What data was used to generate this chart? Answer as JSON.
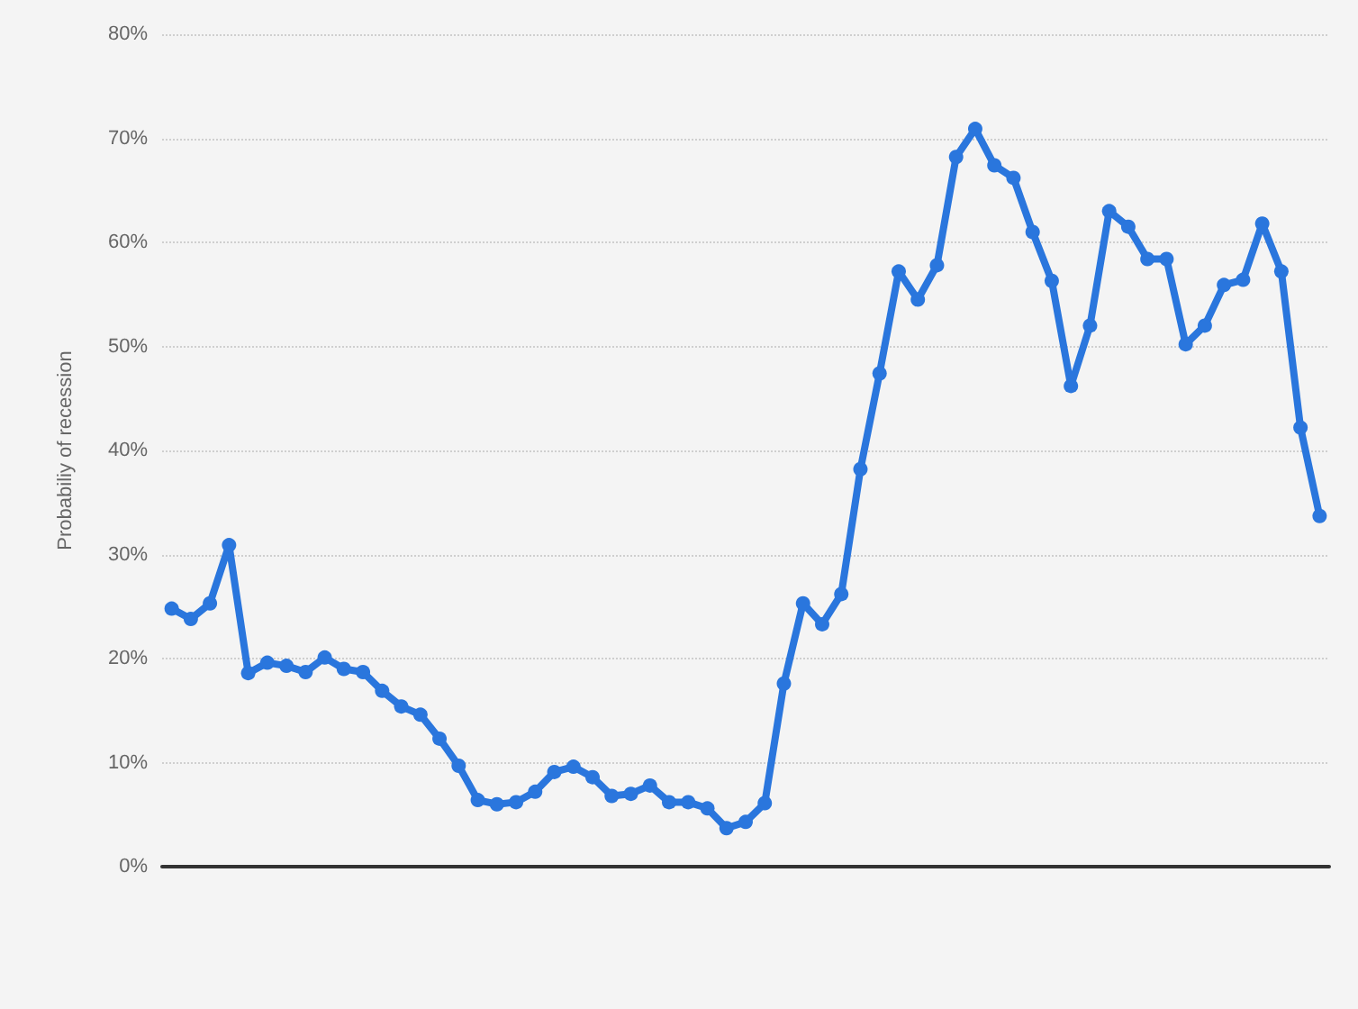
{
  "chart_data": {
    "type": "line",
    "ylabel": "Probabiliy of recession",
    "categories": [
      null,
      null,
      null,
      null,
      null,
      null,
      null,
      null,
      null,
      null,
      null,
      null,
      null,
      null,
      null,
      null,
      null,
      null,
      null,
      null,
      null,
      null,
      null,
      null,
      null,
      null,
      null,
      null,
      null,
      null,
      null,
      null,
      null,
      null,
      null,
      null,
      null,
      null,
      null,
      null,
      null,
      null,
      null,
      null,
      null,
      null,
      null,
      null,
      null,
      null,
      null,
      null,
      null,
      null,
      null,
      null,
      null,
      null,
      null,
      null,
      null
    ],
    "series": [
      {
        "color": "#2a76dd",
        "values": [
          24.8,
          23.8,
          25.3,
          30.9,
          18.6,
          19.6,
          19.3,
          18.7,
          20.1,
          19.0,
          18.7,
          16.9,
          15.4,
          14.6,
          12.3,
          9.7,
          6.4,
          6.0,
          6.2,
          7.2,
          9.1,
          9.6,
          8.6,
          6.8,
          7.0,
          7.8,
          6.2,
          6.2,
          5.6,
          3.7,
          4.3,
          6.1,
          17.6,
          25.3,
          23.3,
          26.2,
          38.2,
          47.4,
          57.2,
          54.5,
          57.8,
          68.2,
          70.9,
          67.4,
          66.2,
          61.0,
          56.3,
          46.2,
          52.0,
          63.0,
          61.5,
          58.4,
          58.4,
          50.2,
          52.0,
          55.9,
          56.4,
          61.8,
          57.2,
          42.2,
          33.7
        ]
      }
    ],
    "ylim": [
      0,
      80
    ],
    "yticks": [
      {
        "value": 0,
        "label": "0%"
      },
      {
        "value": 10,
        "label": "10%"
      },
      {
        "value": 20,
        "label": "20%"
      },
      {
        "value": 30,
        "label": "30%"
      },
      {
        "value": 40,
        "label": "40%"
      },
      {
        "value": 50,
        "label": "50%"
      },
      {
        "value": 60,
        "label": "60%"
      },
      {
        "value": 70,
        "label": "70%"
      },
      {
        "value": 80,
        "label": "80%"
      }
    ],
    "grid": "y",
    "marker": "circle",
    "line_style": "solid",
    "tick_labels": "y"
  }
}
